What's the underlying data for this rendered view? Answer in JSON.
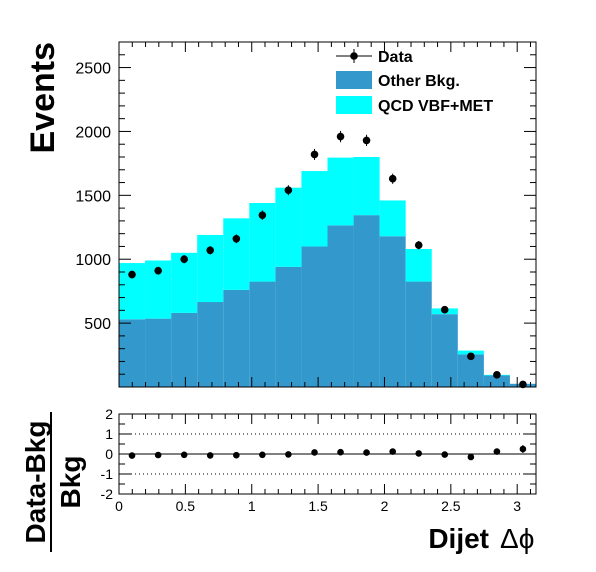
{
  "chart_data": [
    {
      "type": "bar",
      "stacked": true,
      "ylabel": "Events",
      "ylim": [
        0,
        2700
      ],
      "yticks": [
        500,
        1000,
        1500,
        2000,
        2500
      ],
      "xlim": [
        0,
        3.1416
      ],
      "bin_edges": [
        0,
        0.1963,
        0.3927,
        0.589,
        0.7854,
        0.9817,
        1.1781,
        1.3744,
        1.5708,
        1.7671,
        1.9635,
        2.1598,
        2.3562,
        2.5525,
        2.7489,
        2.9452,
        3.1416
      ],
      "series": [
        {
          "name": "Other Bkg.",
          "color": "#3399cc",
          "values": [
            530,
            535,
            580,
            665,
            760,
            825,
            940,
            1100,
            1265,
            1345,
            1180,
            825,
            570,
            255,
            90,
            25
          ]
        },
        {
          "name": "QCD VBF+MET",
          "color": "#00ffff",
          "values": [
            440,
            455,
            470,
            525,
            560,
            615,
            620,
            590,
            530,
            455,
            280,
            255,
            45,
            30,
            5,
            0
          ]
        }
      ],
      "data": {
        "name": "Data",
        "x": [
          0.098,
          0.295,
          0.491,
          0.687,
          0.884,
          1.08,
          1.276,
          1.473,
          1.669,
          1.865,
          2.062,
          2.258,
          2.454,
          2.651,
          2.847,
          3.043
        ],
        "y": [
          880,
          910,
          1000,
          1070,
          1160,
          1345,
          1540,
          1820,
          1960,
          1930,
          1630,
          1110,
          605,
          240,
          95,
          20
        ],
        "err": [
          30,
          30,
          32,
          33,
          34,
          37,
          39,
          43,
          44,
          44,
          40,
          33,
          25,
          15,
          10,
          5
        ]
      },
      "legend": {
        "placement": "top-right",
        "entries": [
          "Data",
          "Other Bkg.",
          "QCD VBF+MET"
        ]
      }
    },
    {
      "type": "scatter",
      "ylabel": {
        "numerator": "Data-Bkg",
        "denominator": "Bkg"
      },
      "xlabel": {
        "text": "Dijet",
        "symbol": "Δϕ"
      },
      "ylim": [
        -2,
        2
      ],
      "yticks": [
        -2,
        -1,
        0,
        1,
        2
      ],
      "xticks": [
        0,
        0.5,
        1,
        1.5,
        2,
        2.5,
        3
      ],
      "xtick_labels": [
        "0",
        "0.5",
        "1",
        "1.5",
        "2",
        "2.5",
        "3"
      ],
      "reference_lines": [
        -1,
        0,
        1
      ],
      "x": [
        0.098,
        0.295,
        0.491,
        0.687,
        0.884,
        1.08,
        1.276,
        1.473,
        1.669,
        1.865,
        2.062,
        2.258,
        2.454,
        2.651,
        2.847,
        3.043
      ],
      "y": [
        -0.08,
        -0.05,
        -0.04,
        -0.07,
        -0.06,
        -0.04,
        -0.02,
        0.08,
        0.09,
        0.07,
        0.12,
        0.03,
        -0.03,
        -0.15,
        0.12,
        0.25
      ],
      "err": [
        0.03,
        0.03,
        0.03,
        0.03,
        0.03,
        0.03,
        0.03,
        0.03,
        0.03,
        0.03,
        0.03,
        0.03,
        0.04,
        0.06,
        0.1,
        0.2
      ]
    }
  ]
}
